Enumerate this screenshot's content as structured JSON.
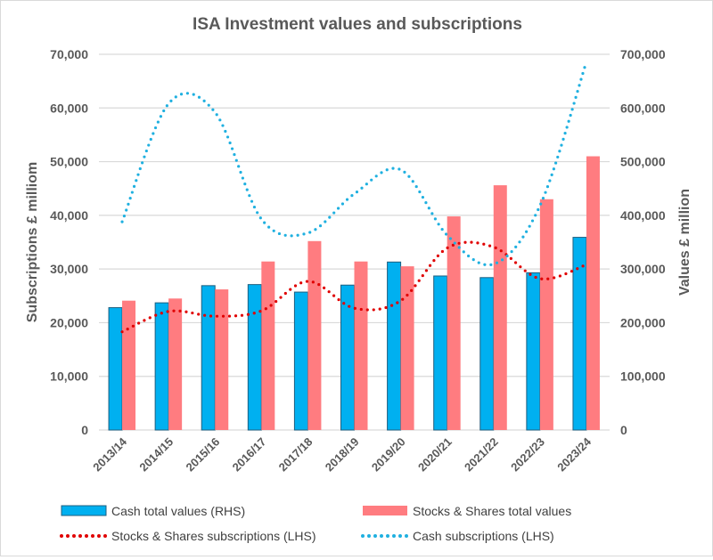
{
  "chart_data": {
    "type": "bar+line",
    "title": "ISA Investment values and subscriptions",
    "ylabel_left": "Subscriptions £ milliom",
    "ylabel_right": "Values £ million",
    "ylim_left": [
      0,
      70000
    ],
    "ylim_right": [
      0,
      700000
    ],
    "yticks_left": [
      "0",
      "10,000",
      "20,000",
      "30,000",
      "40,000",
      "50,000",
      "60,000",
      "70,000"
    ],
    "yticks_right": [
      "0",
      "100,000",
      "200,000",
      "300,000",
      "400,000",
      "500,000",
      "600,000",
      "700,000"
    ],
    "grid": true,
    "legend_position": "bottom",
    "categories": [
      "2013/14",
      "2014/15",
      "2015/16",
      "2016/17",
      "2017/18",
      "2018/19",
      "2019/20",
      "2020/21",
      "2021/22",
      "2022/23",
      "2023/24"
    ],
    "series": [
      {
        "name": "Cash total values (RHS)",
        "type": "bar",
        "axis": "right",
        "color": "#00b0f0",
        "values": [
          228000,
          237000,
          269000,
          271000,
          257000,
          270000,
          313000,
          287000,
          284000,
          293000,
          359000
        ]
      },
      {
        "name": "Stocks & Shares total values",
        "type": "bar",
        "axis": "right",
        "color": "#ff7c80",
        "values": [
          241000,
          245000,
          262000,
          314000,
          352000,
          314000,
          305000,
          398000,
          456000,
          430000,
          510000
        ]
      },
      {
        "name": "Stocks & Shares subscriptions (LHS)",
        "type": "line",
        "style": "dotted",
        "axis": "left",
        "color": "#e00000",
        "values": [
          18300,
          22100,
          21200,
          22200,
          27700,
          22700,
          24100,
          33900,
          34100,
          28200,
          30800
        ]
      },
      {
        "name": "Cash subscriptions (LHS)",
        "type": "line",
        "style": "dotted",
        "axis": "left",
        "color": "#1fb0e0",
        "values": [
          38800,
          60800,
          59200,
          39300,
          36700,
          44000,
          48500,
          36300,
          30900,
          41800,
          68600
        ]
      }
    ]
  }
}
